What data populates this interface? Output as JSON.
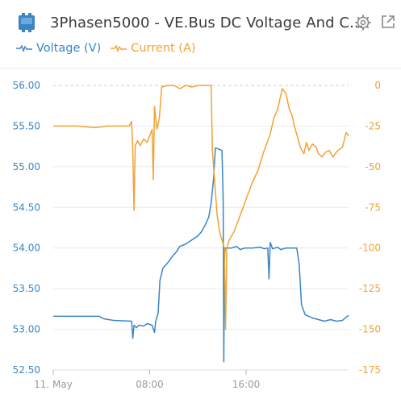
{
  "header": {
    "title": "3Phasen5000 - VE.Bus DC Voltage And C...",
    "device_icon": "device-icon",
    "settings_icon": "gear-icon",
    "popout_icon": "popout-icon"
  },
  "legend": {
    "voltage_label": "Voltage (V)",
    "current_label": "Current (A)"
  },
  "colors": {
    "voltage": "#3a85c6",
    "current": "#f2a232",
    "left_axis_text": "#3a85c6",
    "right_axis_text": "#f2a232",
    "x_axis_text": "#9a9a9a",
    "grid": "#e9e9e9",
    "title": "#3b3b3b",
    "icon": "#3a85c6"
  },
  "chart_data": {
    "type": "line",
    "title": "",
    "xlabel": "",
    "x_ticks": [
      "11. May",
      "08:00",
      "16:00"
    ],
    "x_tick_hours": [
      0,
      8,
      16
    ],
    "xlim_hours": [
      0,
      24.5
    ],
    "y_left": {
      "label": "Voltage (V)",
      "range": [
        52.5,
        56.0
      ],
      "ticks": [
        "56.00",
        "55.50",
        "55.00",
        "54.50",
        "54.00",
        "53.50",
        "53.00",
        "52.50"
      ],
      "tick_values": [
        56.0,
        55.5,
        55.0,
        54.5,
        54.0,
        53.5,
        53.0,
        52.5
      ]
    },
    "y_right": {
      "label": "Current (A)",
      "range": [
        -175,
        0
      ],
      "ticks": [
        "0",
        "-25",
        "-50",
        "-75",
        "-100",
        "-125",
        "-150",
        "-175"
      ],
      "tick_values": [
        0,
        -25,
        -50,
        -75,
        -100,
        -125,
        -150,
        -175
      ]
    },
    "series": [
      {
        "name": "Voltage (V)",
        "axis": "left",
        "points": [
          [
            0,
            53.16
          ],
          [
            2,
            53.16
          ],
          [
            3.8,
            53.16
          ],
          [
            4.2,
            53.13
          ],
          [
            5,
            53.11
          ],
          [
            6.5,
            53.1
          ],
          [
            6.6,
            52.89
          ],
          [
            6.7,
            53.05
          ],
          [
            6.9,
            53.02
          ],
          [
            7.1,
            53.05
          ],
          [
            7.5,
            53.04
          ],
          [
            7.8,
            53.07
          ],
          [
            8.2,
            53.05
          ],
          [
            8.4,
            52.96
          ],
          [
            8.5,
            53.1
          ],
          [
            8.7,
            53.2
          ],
          [
            8.85,
            53.6
          ],
          [
            9.1,
            53.75
          ],
          [
            9.5,
            53.82
          ],
          [
            9.9,
            53.9
          ],
          [
            10.2,
            53.95
          ],
          [
            10.5,
            54.02
          ],
          [
            11.0,
            54.05
          ],
          [
            11.5,
            54.1
          ],
          [
            12.0,
            54.15
          ],
          [
            12.3,
            54.2
          ],
          [
            12.6,
            54.28
          ],
          [
            12.9,
            54.38
          ],
          [
            13.1,
            54.55
          ],
          [
            13.3,
            54.85
          ],
          [
            13.45,
            55.23
          ],
          [
            13.7,
            55.22
          ],
          [
            14.0,
            55.2
          ],
          [
            14.1,
            54.6
          ],
          [
            14.15,
            52.6
          ],
          [
            14.2,
            53.8
          ],
          [
            14.25,
            54.0
          ],
          [
            14.8,
            54.0
          ],
          [
            15.2,
            54.02
          ],
          [
            15.5,
            53.98
          ],
          [
            15.9,
            54.0
          ],
          [
            16.5,
            54.0
          ],
          [
            17.2,
            54.01
          ],
          [
            17.5,
            53.99
          ],
          [
            17.8,
            54.0
          ],
          [
            17.9,
            53.62
          ],
          [
            18.0,
            54.07
          ],
          [
            18.2,
            53.99
          ],
          [
            18.6,
            54.01
          ],
          [
            18.9,
            53.98
          ],
          [
            19.3,
            54.0
          ],
          [
            20.2,
            54.0
          ],
          [
            20.4,
            53.8
          ],
          [
            20.6,
            53.3
          ],
          [
            20.9,
            53.18
          ],
          [
            21.5,
            53.14
          ],
          [
            22.5,
            53.1
          ],
          [
            23.0,
            53.12
          ],
          [
            23.5,
            53.1
          ],
          [
            24.0,
            53.11
          ],
          [
            24.3,
            53.15
          ],
          [
            24.5,
            53.17
          ]
        ]
      },
      {
        "name": "Current (A)",
        "axis": "right",
        "points": [
          [
            0,
            -25
          ],
          [
            2,
            -25
          ],
          [
            3.5,
            -26
          ],
          [
            4.5,
            -25
          ],
          [
            6.3,
            -25
          ],
          [
            6.5,
            -22
          ],
          [
            6.6,
            -40
          ],
          [
            6.7,
            -77
          ],
          [
            6.8,
            -37
          ],
          [
            7.0,
            -34
          ],
          [
            7.2,
            -37
          ],
          [
            7.5,
            -33
          ],
          [
            7.8,
            -35
          ],
          [
            8.0,
            -31
          ],
          [
            8.2,
            -27
          ],
          [
            8.3,
            -58
          ],
          [
            8.4,
            -13
          ],
          [
            8.6,
            -27
          ],
          [
            8.8,
            -20
          ],
          [
            9.0,
            -1
          ],
          [
            9.5,
            0
          ],
          [
            10,
            0
          ],
          [
            10.5,
            -2
          ],
          [
            11,
            0
          ],
          [
            11.5,
            -1
          ],
          [
            12,
            0
          ],
          [
            12.5,
            0
          ],
          [
            13.1,
            0
          ],
          [
            13.2,
            -40
          ],
          [
            13.4,
            -60
          ],
          [
            13.6,
            -80
          ],
          [
            13.8,
            -90
          ],
          [
            14.0,
            -95
          ],
          [
            14.2,
            -100
          ],
          [
            14.3,
            -150
          ],
          [
            14.4,
            -100
          ],
          [
            14.6,
            -95
          ],
          [
            15.0,
            -90
          ],
          [
            15.5,
            -80
          ],
          [
            16.0,
            -70
          ],
          [
            16.5,
            -60
          ],
          [
            17.0,
            -52
          ],
          [
            17.5,
            -40
          ],
          [
            18.0,
            -30
          ],
          [
            18.3,
            -20
          ],
          [
            18.6,
            -15
          ],
          [
            19.0,
            -2
          ],
          [
            19.3,
            -5
          ],
          [
            19.6,
            -15
          ],
          [
            19.8,
            -18
          ],
          [
            20.0,
            -25
          ],
          [
            20.2,
            -30
          ],
          [
            20.5,
            -38
          ],
          [
            20.8,
            -42
          ],
          [
            21.0,
            -35
          ],
          [
            21.2,
            -40
          ],
          [
            21.5,
            -36
          ],
          [
            21.8,
            -38
          ],
          [
            22.0,
            -42
          ],
          [
            22.3,
            -44
          ],
          [
            22.6,
            -41
          ],
          [
            22.9,
            -40
          ],
          [
            23.2,
            -44
          ],
          [
            23.6,
            -40
          ],
          [
            24.0,
            -38
          ],
          [
            24.3,
            -29
          ],
          [
            24.5,
            -31
          ]
        ]
      }
    ],
    "grid": true
  }
}
